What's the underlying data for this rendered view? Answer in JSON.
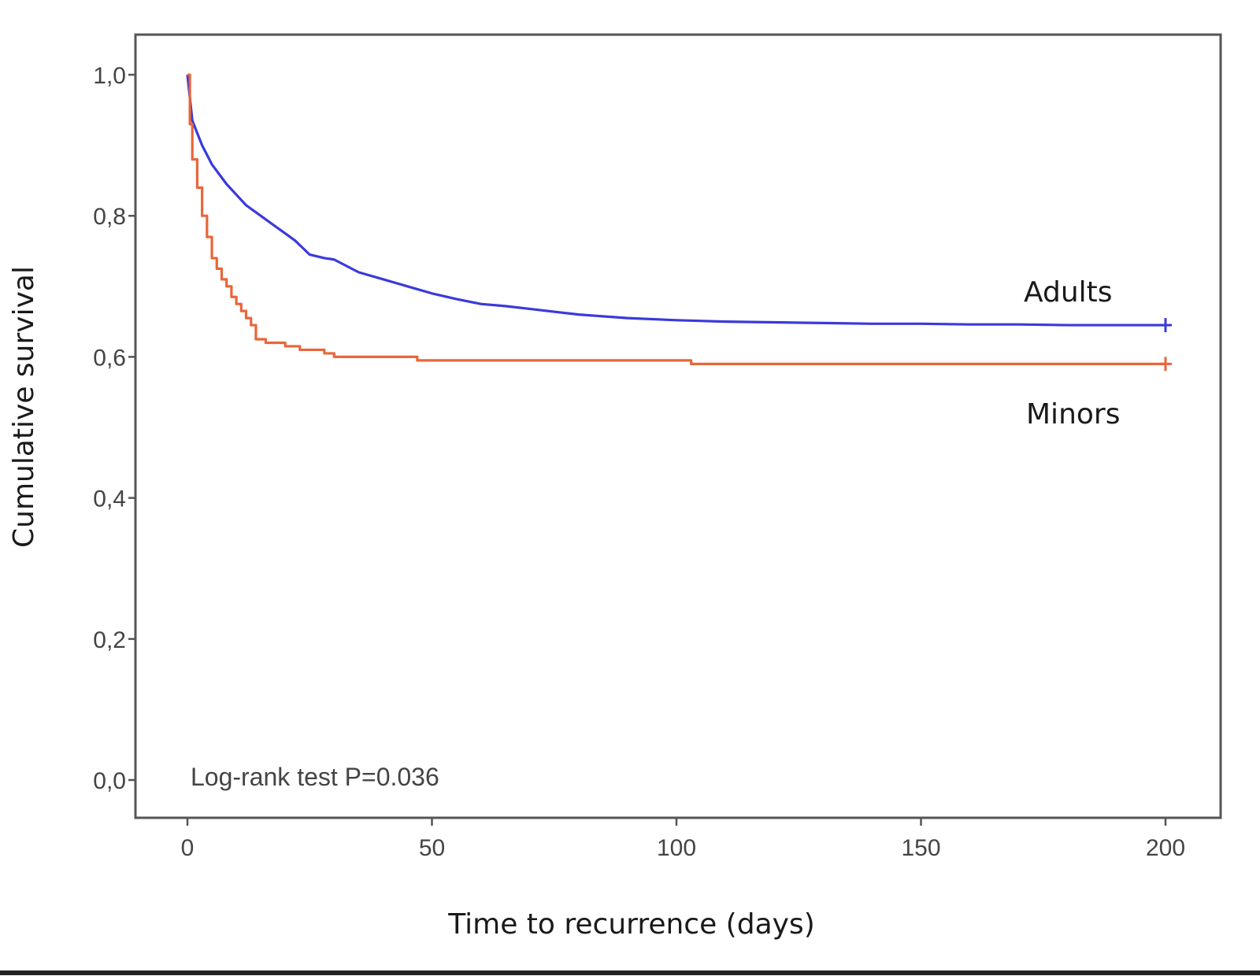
{
  "chart_data": {
    "type": "line",
    "subtype": "kaplan-meier",
    "xlabel": "Time to recurrence (days)",
    "ylabel": "Cumulative survival",
    "xlim": [
      0,
      200
    ],
    "ylim": [
      0.0,
      1.0
    ],
    "xticks": [
      0,
      50,
      100,
      150,
      200
    ],
    "xtick_labels": [
      "0",
      "50",
      "100",
      "150",
      "200"
    ],
    "yticks": [
      0.0,
      0.2,
      0.4,
      0.6,
      0.8,
      1.0
    ],
    "ytick_labels": [
      "0,0",
      "0,2",
      "0,4",
      "0,6",
      "0,8",
      "1,0"
    ],
    "grid": false,
    "annotation": "Log-rank test P=0.036",
    "series": [
      {
        "name": "Adults",
        "color": "#3a3adb",
        "step": false,
        "censor_at": 200,
        "points": [
          [
            0,
            1.0
          ],
          [
            1,
            0.935
          ],
          [
            3,
            0.9
          ],
          [
            5,
            0.873
          ],
          [
            8,
            0.845
          ],
          [
            10,
            0.83
          ],
          [
            12,
            0.815
          ],
          [
            15,
            0.8
          ],
          [
            18,
            0.785
          ],
          [
            20,
            0.775
          ],
          [
            22,
            0.765
          ],
          [
            25,
            0.745
          ],
          [
            28,
            0.74
          ],
          [
            30,
            0.738
          ],
          [
            35,
            0.72
          ],
          [
            40,
            0.71
          ],
          [
            45,
            0.7
          ],
          [
            50,
            0.69
          ],
          [
            55,
            0.682
          ],
          [
            60,
            0.675
          ],
          [
            65,
            0.672
          ],
          [
            70,
            0.668
          ],
          [
            75,
            0.664
          ],
          [
            80,
            0.66
          ],
          [
            90,
            0.655
          ],
          [
            100,
            0.652
          ],
          [
            110,
            0.65
          ],
          [
            120,
            0.649
          ],
          [
            130,
            0.648
          ],
          [
            140,
            0.647
          ],
          [
            150,
            0.647
          ],
          [
            160,
            0.646
          ],
          [
            170,
            0.646
          ],
          [
            180,
            0.645
          ],
          [
            190,
            0.645
          ],
          [
            200,
            0.645
          ]
        ]
      },
      {
        "name": "Minors",
        "color": "#e8663a",
        "step": true,
        "censor_at": 200,
        "points": [
          [
            0,
            1.0
          ],
          [
            0.5,
            0.93
          ],
          [
            1,
            0.88
          ],
          [
            2,
            0.84
          ],
          [
            3,
            0.8
          ],
          [
            4,
            0.77
          ],
          [
            5,
            0.74
          ],
          [
            6,
            0.725
          ],
          [
            7,
            0.71
          ],
          [
            8,
            0.7
          ],
          [
            9,
            0.685
          ],
          [
            10,
            0.675
          ],
          [
            11,
            0.665
          ],
          [
            12,
            0.655
          ],
          [
            13,
            0.645
          ],
          [
            14,
            0.625
          ],
          [
            16,
            0.62
          ],
          [
            20,
            0.615
          ],
          [
            23,
            0.61
          ],
          [
            28,
            0.605
          ],
          [
            30,
            0.6
          ],
          [
            47,
            0.595
          ],
          [
            103,
            0.59
          ],
          [
            200,
            0.59
          ]
        ]
      }
    ]
  }
}
